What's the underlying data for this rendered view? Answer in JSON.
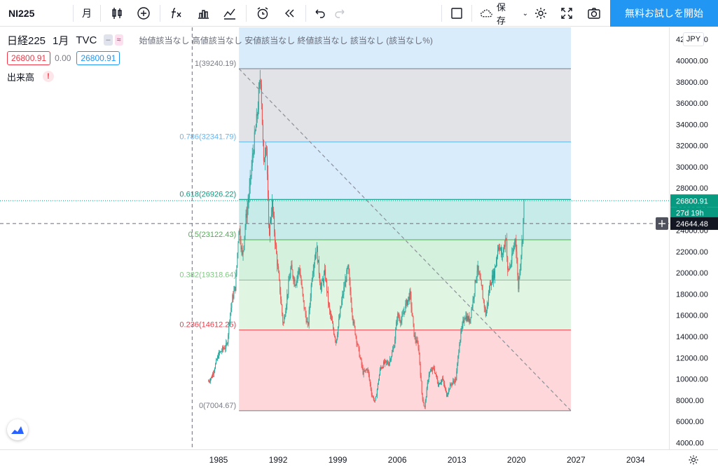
{
  "toolbar": {
    "symbol": "NI225",
    "interval": "月",
    "save_label": "保存",
    "trial_label": "無料お試しを開始"
  },
  "legend": {
    "title": "日経225",
    "interval": "1月",
    "source": "TVC",
    "ohlc_text": "始値該当なし 高値該当なし 安値該当なし 終値該当なし 該当なし (該当なし%)",
    "bid": "26800.91",
    "spread": "0.00",
    "ask": "26800.91",
    "volume_label": "出来高",
    "warning": "!"
  },
  "currency": "JPY",
  "colors": {
    "up": "#26a69a",
    "down": "#ef5350",
    "accent": "#2196f3"
  },
  "fib_levels": [
    {
      "ratio": 1,
      "label": "1(39240.19)",
      "price": 39240.19,
      "color": "#787b86",
      "fill": "#e1e3e6"
    },
    {
      "ratio": 0.786,
      "label": "0.786(32341.79)",
      "price": 32341.79,
      "color": "#64b5f6",
      "fill": "#d8ecfc"
    },
    {
      "ratio": 0.618,
      "label": "0.618(26926.22)",
      "price": 26926.22,
      "color": "#089981",
      "fill": "#c6ebe8"
    },
    {
      "ratio": 0.5,
      "label": "0.5(23122.43)",
      "price": 23122.43,
      "color": "#4caf50",
      "fill": "#d4f1dd"
    },
    {
      "ratio": 0.382,
      "label": "0.382(19318.64)",
      "price": 19318.64,
      "color": "#81c784",
      "fill": "#e1f5e3"
    },
    {
      "ratio": 0.236,
      "label": "0.236(14612.25)",
      "price": 14612.25,
      "color": "#f23645",
      "fill": "#fdd7da"
    },
    {
      "ratio": 0,
      "label": "0(7004.67)",
      "price": 7004.67,
      "color": "#787b86",
      "fill": null
    }
  ],
  "price_axis": {
    "ticks": [
      "42000.00",
      "40000.00",
      "38000.00",
      "36000.00",
      "34000.00",
      "32000.00",
      "30000.00",
      "28000.00",
      "26000.00",
      "24000.00",
      "22000.00",
      "20000.00",
      "18000.00",
      "16000.00",
      "14000.00",
      "12000.00",
      "10000.00",
      "8000.00",
      "6000.00",
      "4000.00"
    ],
    "tick_values": [
      42000,
      40000,
      38000,
      36000,
      34000,
      32000,
      30000,
      28000,
      26000,
      24000,
      22000,
      20000,
      18000,
      16000,
      14000,
      12000,
      10000,
      8000,
      6000,
      4000
    ],
    "last_price": "26800.91",
    "last_price_value": 26800.91,
    "countdown": "27d 19h",
    "crosshair_price": "24644.48",
    "crosshair_price_value": 24644.48
  },
  "time_axis": {
    "ticks": [
      "1985",
      "1992",
      "1999",
      "2006",
      "2013",
      "2020",
      "2027",
      "2034"
    ],
    "tick_years": [
      1985,
      1992,
      1999,
      2006,
      2013,
      2020,
      2027,
      2034
    ]
  },
  "chart_data": {
    "type": "candlestick",
    "symbol": "NI225",
    "interval": "1M",
    "ylim": [
      4000,
      42000
    ],
    "xlim": [
      1980.7,
      2038.8
    ],
    "trend_line": {
      "from": [
        1987.4,
        39240.19
      ],
      "to": [
        2026.4,
        7004.67
      ]
    },
    "fib_range": {
      "x_from": 1987.4,
      "x_to": 2026.4
    },
    "crosshair_year": 1981.9,
    "price_series": [
      {
        "x": 1983.8,
        "y": 9800
      },
      {
        "x": 1984.2,
        "y": 10200
      },
      {
        "x": 1984.5,
        "y": 11000
      },
      {
        "x": 1985.0,
        "y": 12300
      },
      {
        "x": 1985.5,
        "y": 12800
      },
      {
        "x": 1986.0,
        "y": 13200
      },
      {
        "x": 1986.3,
        "y": 15800
      },
      {
        "x": 1986.6,
        "y": 17500
      },
      {
        "x": 1987.0,
        "y": 18800
      },
      {
        "x": 1987.4,
        "y": 24500
      },
      {
        "x": 1987.8,
        "y": 21500
      },
      {
        "x": 1988.2,
        "y": 25000
      },
      {
        "x": 1988.6,
        "y": 27500
      },
      {
        "x": 1989.0,
        "y": 31000
      },
      {
        "x": 1989.5,
        "y": 34500
      },
      {
        "x": 1989.95,
        "y": 38900
      },
      {
        "x": 1990.3,
        "y": 30000
      },
      {
        "x": 1990.6,
        "y": 33000
      },
      {
        "x": 1990.9,
        "y": 23500
      },
      {
        "x": 1991.3,
        "y": 26500
      },
      {
        "x": 1991.7,
        "y": 22500
      },
      {
        "x": 1992.2,
        "y": 18500
      },
      {
        "x": 1992.6,
        "y": 15000
      },
      {
        "x": 1993.0,
        "y": 17500
      },
      {
        "x": 1993.5,
        "y": 20500
      },
      {
        "x": 1994.0,
        "y": 19000
      },
      {
        "x": 1994.5,
        "y": 20500
      },
      {
        "x": 1995.0,
        "y": 17000
      },
      {
        "x": 1995.5,
        "y": 14800
      },
      {
        "x": 1996.0,
        "y": 20000
      },
      {
        "x": 1996.5,
        "y": 22500
      },
      {
        "x": 1997.0,
        "y": 18500
      },
      {
        "x": 1997.5,
        "y": 20000
      },
      {
        "x": 1998.0,
        "y": 16500
      },
      {
        "x": 1998.8,
        "y": 13500
      },
      {
        "x": 1999.5,
        "y": 17500
      },
      {
        "x": 2000.2,
        "y": 20500
      },
      {
        "x": 2000.8,
        "y": 15500
      },
      {
        "x": 2001.5,
        "y": 12500
      },
      {
        "x": 2002.0,
        "y": 10500
      },
      {
        "x": 2002.5,
        "y": 11000
      },
      {
        "x": 2003.0,
        "y": 8500
      },
      {
        "x": 2003.4,
        "y": 7800
      },
      {
        "x": 2004.0,
        "y": 11000
      },
      {
        "x": 2004.5,
        "y": 11500
      },
      {
        "x": 2005.0,
        "y": 11500
      },
      {
        "x": 2005.6,
        "y": 13000
      },
      {
        "x": 2006.0,
        "y": 16000
      },
      {
        "x": 2006.5,
        "y": 15500
      },
      {
        "x": 2007.0,
        "y": 17000
      },
      {
        "x": 2007.5,
        "y": 18000
      },
      {
        "x": 2008.0,
        "y": 14000
      },
      {
        "x": 2008.5,
        "y": 13000
      },
      {
        "x": 2008.9,
        "y": 8500
      },
      {
        "x": 2009.2,
        "y": 7200
      },
      {
        "x": 2009.7,
        "y": 10500
      },
      {
        "x": 2010.3,
        "y": 11000
      },
      {
        "x": 2010.8,
        "y": 9500
      },
      {
        "x": 2011.3,
        "y": 10000
      },
      {
        "x": 2011.8,
        "y": 8500
      },
      {
        "x": 2012.3,
        "y": 9500
      },
      {
        "x": 2012.9,
        "y": 10000
      },
      {
        "x": 2013.3,
        "y": 13500
      },
      {
        "x": 2013.9,
        "y": 16000
      },
      {
        "x": 2014.5,
        "y": 15500
      },
      {
        "x": 2014.9,
        "y": 17500
      },
      {
        "x": 2015.4,
        "y": 20500
      },
      {
        "x": 2015.9,
        "y": 18500
      },
      {
        "x": 2016.4,
        "y": 16000
      },
      {
        "x": 2016.9,
        "y": 19000
      },
      {
        "x": 2017.4,
        "y": 20000
      },
      {
        "x": 2017.9,
        "y": 22800
      },
      {
        "x": 2018.3,
        "y": 21500
      },
      {
        "x": 2018.8,
        "y": 23500
      },
      {
        "x": 2018.95,
        "y": 20000
      },
      {
        "x": 2019.4,
        "y": 21000
      },
      {
        "x": 2019.9,
        "y": 23500
      },
      {
        "x": 2020.2,
        "y": 18500
      },
      {
        "x": 2020.4,
        "y": 20500
      },
      {
        "x": 2020.7,
        "y": 23300
      },
      {
        "x": 2020.9,
        "y": 26800
      }
    ]
  }
}
